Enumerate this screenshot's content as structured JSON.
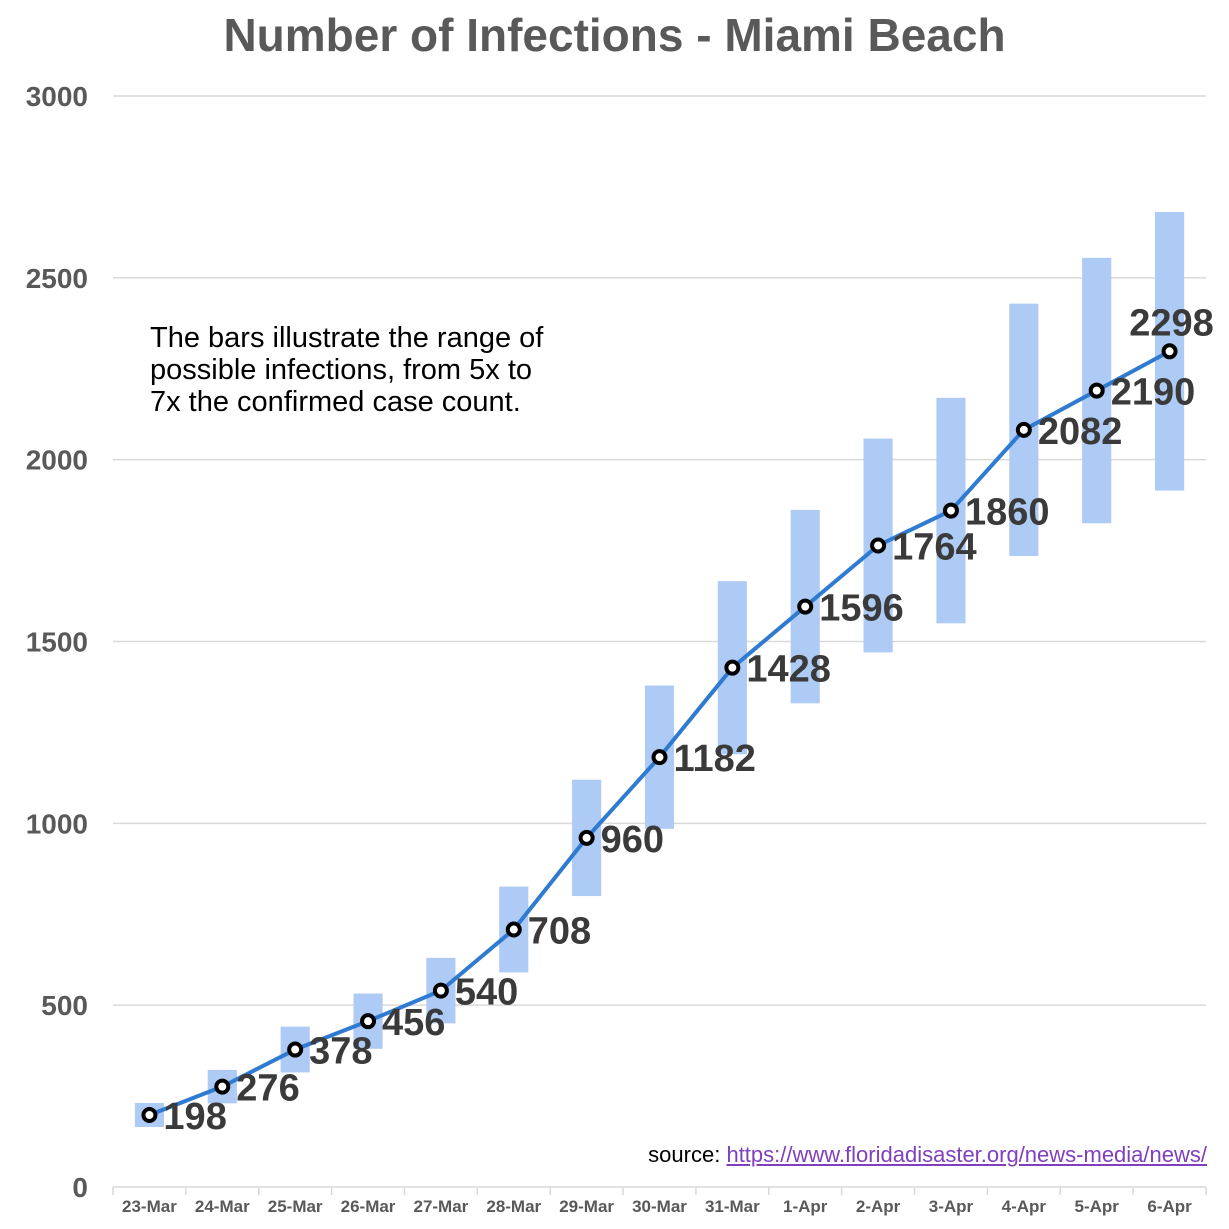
{
  "chart_data": {
    "type": "line",
    "title": "Number of Infections - Miami Beach",
    "annotation": "The bars illustrate the range of\npossible infections, from 5x to\n7x the confirmed case count.",
    "source": {
      "label": "source:",
      "url": "https://www.floridadisaster.org/news-media/news/"
    },
    "categories": [
      "23-Mar",
      "24-Mar",
      "25-Mar",
      "26-Mar",
      "27-Mar",
      "28-Mar",
      "29-Mar",
      "30-Mar",
      "31-Mar",
      "1-Apr",
      "2-Apr",
      "3-Apr",
      "4-Apr",
      "5-Apr",
      "6-Apr"
    ],
    "series": [
      {
        "type": "line",
        "values": [
          198,
          276,
          378,
          456,
          540,
          708,
          960,
          1182,
          1428,
          1596,
          1764,
          1860,
          2082,
          2190,
          2298
        ],
        "color": "#2e7bd1"
      },
      {
        "type": "range-bar",
        "low": [
          165,
          230,
          315,
          380,
          450,
          590,
          800,
          985,
          1190,
          1330,
          1470,
          1550,
          1735,
          1825,
          1915
        ],
        "high": [
          231,
          322,
          441,
          532,
          630,
          826,
          1120,
          1379,
          1666,
          1862,
          2058,
          2170,
          2429,
          2555,
          2681
        ],
        "color": "#aecbf5"
      }
    ],
    "yticks": [
      0,
      500,
      1000,
      1500,
      2000,
      2500,
      3000
    ],
    "ylim": [
      0,
      3000
    ],
    "grid": true,
    "colors": {
      "title": "#595959",
      "axis_labels": "#595959",
      "data_labels": "#3a3a3a",
      "grid": "#d9d9d9",
      "link": "#7f3fbf"
    }
  }
}
